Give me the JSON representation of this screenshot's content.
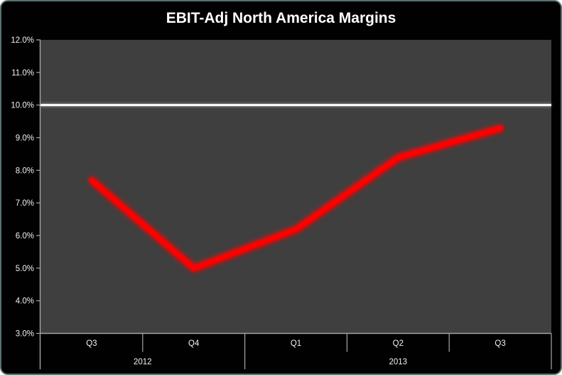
{
  "window": {
    "background_color": "#010101",
    "border_color": "#5c7070",
    "outer_background": "#ffffff"
  },
  "chart_data": {
    "type": "line",
    "title": "EBIT-Adj North America Margins",
    "categories": [
      "Q3",
      "Q4",
      "Q1",
      "Q2",
      "Q3"
    ],
    "year_groups": [
      {
        "label": "2012",
        "from": 0,
        "to": 1
      },
      {
        "label": "2013",
        "from": 2,
        "to": 4
      }
    ],
    "series": [
      {
        "values": [
          7.7,
          5.0,
          6.2,
          8.4,
          9.3
        ],
        "color": "#ff0000"
      }
    ],
    "y_ticks": [
      "12.0%",
      "11.0%",
      "10.0%",
      "9.0%",
      "8.0%",
      "7.0%",
      "6.0%",
      "5.0%",
      "4.0%",
      "3.0%"
    ],
    "ylim": [
      3.0,
      12.0
    ],
    "y_step": 1.0,
    "reference_line": {
      "value": 10.0,
      "color": "#ffffff"
    },
    "xlabel": "",
    "ylabel": "",
    "grid": false,
    "legend": false,
    "plot_background": "#3f3f3f",
    "axis_color": "#a6a6a6",
    "label_color": "#f2f2f2"
  }
}
